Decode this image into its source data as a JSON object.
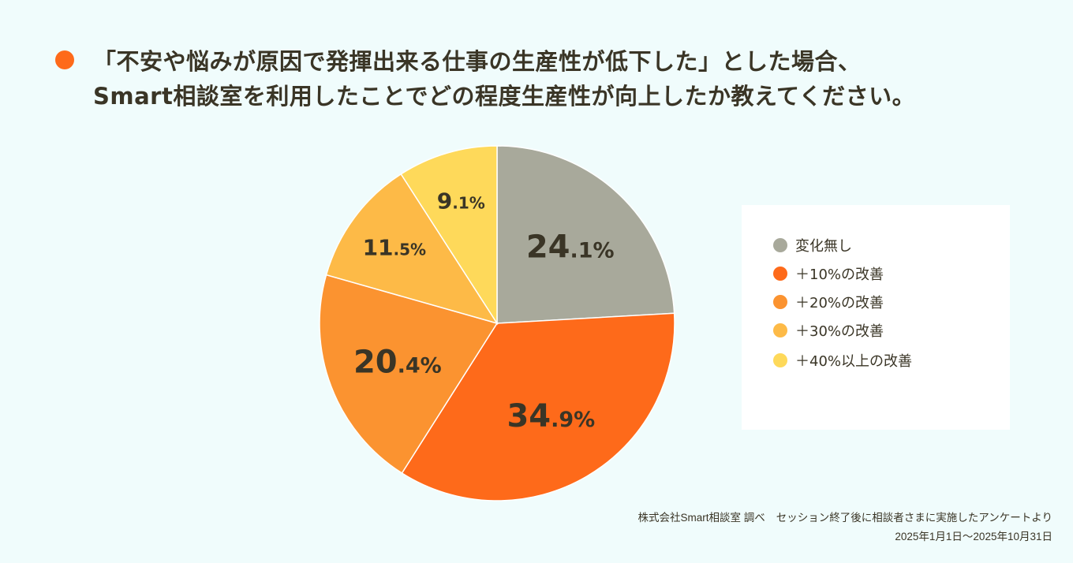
{
  "title": {
    "line1": "「不安や悩みが原因で発揮出来る仕事の生産性が低下した」とした場合、",
    "line2": "Smart相談室を利用したことでどの程度生産性が向上したか教えてください。",
    "bullet_color": "#fe6a1a"
  },
  "chart_data": {
    "type": "pie",
    "start": "top",
    "direction": "clockwise",
    "categories": [
      "変化無し",
      "+10%の改善",
      "+20%の改善",
      "+30%の改善",
      "+40%以上の改善"
    ],
    "values": [
      24.1,
      34.9,
      20.4,
      11.5,
      9.1
    ],
    "labels": [
      "24.1%",
      "34.9%",
      "20.4%",
      "11.5%",
      "9.1%"
    ],
    "colors": [
      "#a8a99b",
      "#fe6a1a",
      "#fb9330",
      "#fdba47",
      "#fed95a"
    ],
    "legend_position": "right"
  },
  "legend": {
    "items": [
      "変化無し",
      "＋10%の改善",
      "＋20%の改善",
      "＋30%の改善",
      "＋40%以上の改善"
    ]
  },
  "source": {
    "company": "株式会社Smart相談室 調べ",
    "survey": "セッション終了後に相談者さまに実施したアンケートより",
    "period": "2025年1月1日〜2025年10月31日"
  }
}
